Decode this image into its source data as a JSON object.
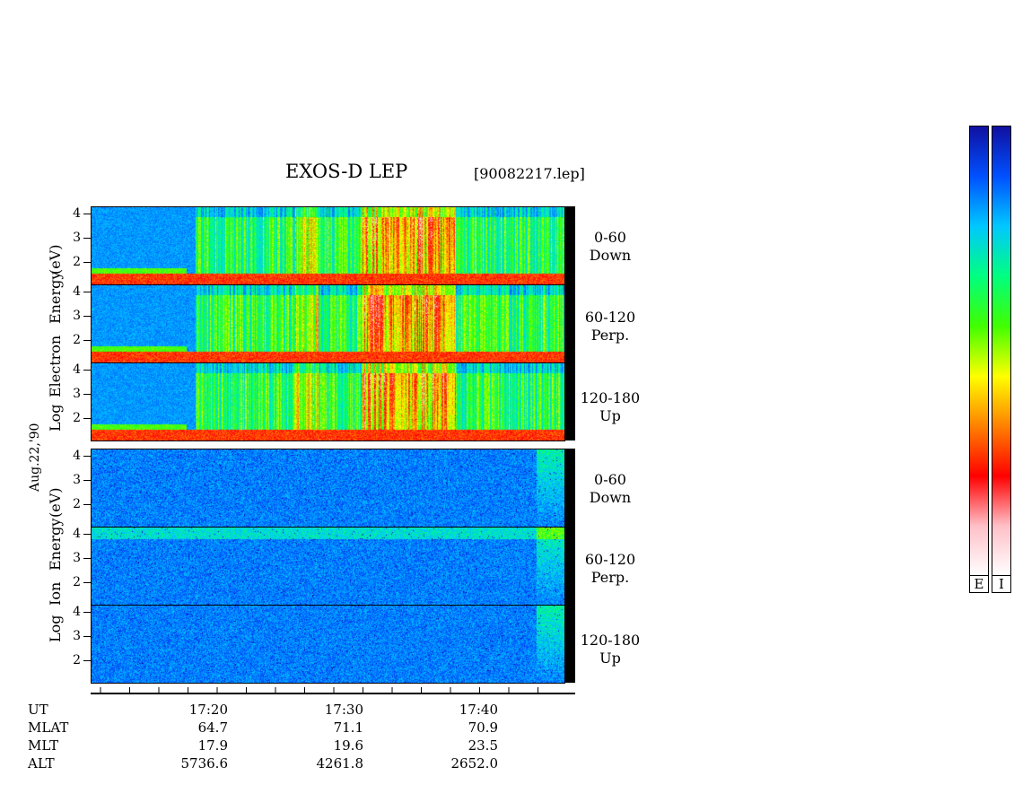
{
  "header": {
    "title": "EXOS-D LEP",
    "file": "[90082217.lep]"
  },
  "axes": {
    "electron_label_energy": "Energy",
    "electron_label_species": "Electron",
    "electron_label_log": "Log",
    "electron_label_unit": "(eV)",
    "ion_label_energy": "Energy",
    "ion_label_species": "Ion",
    "ion_label_log": "Log",
    "ion_label_unit": "(eV)",
    "date": "Aug.22,'90",
    "y_ticks": [
      "4",
      "3",
      "2"
    ]
  },
  "channels": [
    {
      "range": "0-60",
      "dir": "Down"
    },
    {
      "range": "60-120",
      "dir": "Perp."
    },
    {
      "range": "120-180",
      "dir": "Up"
    },
    {
      "range": "0-60",
      "dir": "Down"
    },
    {
      "range": "60-120",
      "dir": "Perp."
    },
    {
      "range": "120-180",
      "dir": "Up"
    }
  ],
  "time_axis": {
    "row_labels": [
      "UT",
      "MLAT",
      "MLT",
      "ALT"
    ],
    "ticks": [
      {
        "UT": "17:20",
        "MLAT": "64.7",
        "MLT": "17.9",
        "ALT": "5736.6"
      },
      {
        "UT": "17:30",
        "MLAT": "71.1",
        "MLT": "19.6",
        "ALT": "4261.8"
      },
      {
        "UT": "17:40",
        "MLAT": "70.9",
        "MLT": "23.5",
        "ALT": "2652.0"
      }
    ]
  },
  "colorbars": {
    "electron_label": "E",
    "ion_label": "I"
  },
  "chart_data": {
    "type": "heatmap",
    "title": "EXOS-D LEP",
    "subtitle": "[90082217.lep]",
    "xlabel": "UT",
    "x_ticks": [
      "17:20",
      "17:30",
      "17:40"
    ],
    "ylabel_electron": "Log Electron Energy (eV)",
    "ylabel_ion": "Log Ion Energy (eV)",
    "ylim": [
      1,
      4
    ],
    "y_ticks": [
      4,
      3,
      2
    ],
    "panels": [
      {
        "species": "Electron",
        "pitch_angle": "0-60",
        "direction": "Down"
      },
      {
        "species": "Electron",
        "pitch_angle": "60-120",
        "direction": "Perp."
      },
      {
        "species": "Electron",
        "pitch_angle": "120-180",
        "direction": "Up"
      },
      {
        "species": "Ion",
        "pitch_angle": "0-60",
        "direction": "Down"
      },
      {
        "species": "Ion",
        "pitch_angle": "60-120",
        "direction": "Perp."
      },
      {
        "species": "Ion",
        "pitch_angle": "120-180",
        "direction": "Up"
      }
    ],
    "colormap": [
      "#1010a0",
      "#0050ff",
      "#00c8ff",
      "#00ff80",
      "#40ff00",
      "#ffff00",
      "#ff8000",
      "#ff0000",
      "#ffc0c8",
      "#ffffff"
    ],
    "colorbars": [
      "E",
      "I"
    ]
  }
}
